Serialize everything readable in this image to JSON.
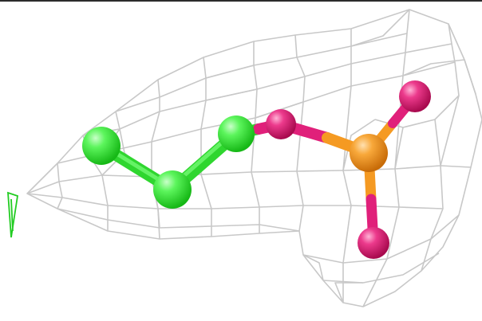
{
  "scene": {
    "background_color": "#ffffff",
    "mesh_color": "#c8c8c8",
    "carbon_color": "#33ee33",
    "oxygen_color": "#e8207a",
    "phosphorus_color": "#f59a22",
    "axis_marker_color": "#22cc22"
  },
  "molecule": {
    "atoms": [
      {
        "id": "C1",
        "element": "carbon"
      },
      {
        "id": "C2",
        "element": "carbon"
      },
      {
        "id": "C3",
        "element": "carbon"
      },
      {
        "id": "O1",
        "element": "oxygen"
      },
      {
        "id": "P1",
        "element": "phosphorus"
      },
      {
        "id": "O2",
        "element": "oxygen"
      },
      {
        "id": "O3",
        "element": "oxygen"
      }
    ],
    "bonds": [
      [
        "C1",
        "C2"
      ],
      [
        "C2",
        "C3"
      ],
      [
        "C3",
        "O1"
      ],
      [
        "O1",
        "P1"
      ],
      [
        "P1",
        "O2"
      ],
      [
        "P1",
        "O3"
      ]
    ]
  }
}
